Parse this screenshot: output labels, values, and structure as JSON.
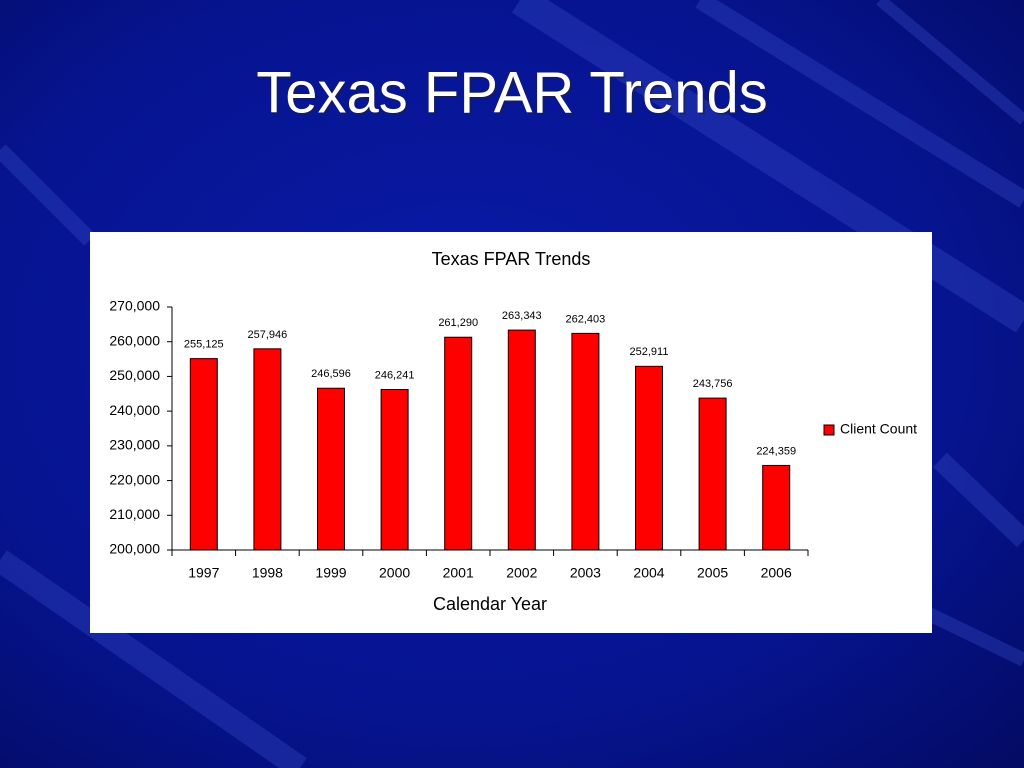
{
  "slide_title": "Texas FPAR Trends",
  "chart_data": {
    "type": "bar",
    "title": "Texas FPAR Trends",
    "x_label": "Calendar Year",
    "categories": [
      "1997",
      "1998",
      "1999",
      "2000",
      "2001",
      "2002",
      "2003",
      "2004",
      "2005",
      "2006"
    ],
    "series": [
      {
        "name": "Client Count",
        "color": "#ff0000",
        "values": [
          255125,
          257946,
          246596,
          246241,
          261290,
          263343,
          262403,
          252911,
          243756,
          224359
        ],
        "value_labels": [
          "255,125",
          "257,946",
          "246,596",
          "246,241",
          "261,290",
          "263,343",
          "262,403",
          "252,911",
          "243,756",
          "224,359"
        ]
      }
    ],
    "ylim": [
      200000,
      270000
    ],
    "yticks": [
      {
        "value": 200000,
        "label": "200,000"
      },
      {
        "value": 210000,
        "label": "210,000"
      },
      {
        "value": 220000,
        "label": "220,000"
      },
      {
        "value": 230000,
        "label": "230,000"
      },
      {
        "value": 240000,
        "label": "240,000"
      },
      {
        "value": 250000,
        "label": "250,000"
      },
      {
        "value": 260000,
        "label": "260,000"
      },
      {
        "value": 270000,
        "label": "270,000"
      }
    ],
    "grid": false,
    "legend": "right"
  }
}
